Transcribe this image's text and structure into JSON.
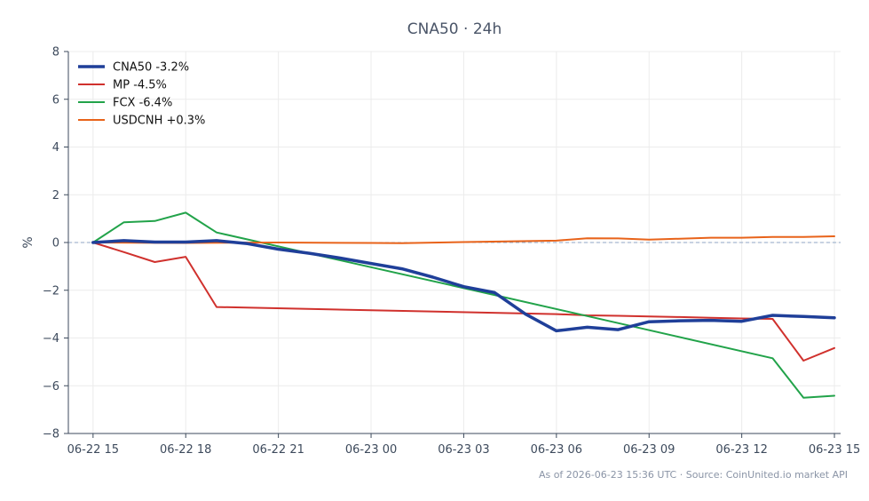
{
  "chart_data": {
    "type": "line",
    "title": "CNA50 · 24h",
    "ylabel": "%",
    "xlabel": "",
    "ylim": [
      -8,
      8
    ],
    "yticks": [
      8,
      6,
      4,
      2,
      0,
      -2,
      -4,
      -6,
      -8
    ],
    "ytick_labels": [
      "8",
      "6",
      "4",
      "2",
      "0",
      "−2",
      "−4",
      "−6",
      "−8"
    ],
    "xlim": [
      -0.8,
      24.2
    ],
    "xticks": [
      0,
      3,
      6,
      9,
      12,
      15,
      18,
      21,
      24
    ],
    "xtick_labels": [
      "06-22 15",
      "06-22 18",
      "06-22 21",
      "06-23 00",
      "06-23 03",
      "06-23 06",
      "06-23 09",
      "06-23 12",
      "06-23 15"
    ],
    "grid": true,
    "zero_line": true,
    "legend_position": "top-left",
    "series": [
      {
        "name": "CNA50 -3.2%",
        "color": "#1f3f99",
        "width": 3.5,
        "x": [
          0,
          1,
          2,
          3,
          4,
          5,
          6,
          7,
          8,
          9,
          10,
          11,
          12,
          13,
          14,
          15,
          16,
          17,
          18,
          19,
          20,
          21,
          22,
          23,
          24
        ],
        "y": [
          0.0,
          0.08,
          0.02,
          0.02,
          0.08,
          -0.05,
          -0.28,
          -0.45,
          -0.65,
          -0.88,
          -1.1,
          -1.45,
          -1.85,
          -2.1,
          -3.0,
          -3.7,
          -3.55,
          -3.65,
          -3.32,
          -3.28,
          -3.26,
          -3.3,
          -3.05,
          -3.1,
          -3.15
        ]
      },
      {
        "name": "MP -4.5%",
        "color": "#d0312d",
        "width": 2,
        "x": [
          0,
          1,
          2,
          3,
          4,
          23,
          24
        ],
        "y": [
          0.0,
          -0.4,
          -0.82,
          -0.6,
          -2.7,
          -4.95,
          -4.42
        ],
        "x_full": [
          0,
          1,
          2,
          3,
          4,
          15,
          16,
          17,
          18,
          19,
          20,
          21,
          22,
          23,
          24
        ],
        "y_full": [
          0.0,
          -0.4,
          -0.82,
          -0.6,
          -2.7,
          -3.0,
          -3.05,
          -3.07,
          -3.1,
          -3.12,
          -3.15,
          -3.18,
          -3.2,
          -4.95,
          -4.42
        ]
      },
      {
        "name": "FCX -6.4%",
        "color": "#22a34a",
        "width": 2,
        "x": [
          0,
          1,
          2,
          3,
          4,
          13,
          22,
          23,
          24
        ],
        "y": [
          0.0,
          0.85,
          0.9,
          1.25,
          0.42,
          -2.2,
          -4.85,
          -6.5,
          -6.42
        ]
      },
      {
        "name": "USDCNH +0.3%",
        "color": "#e8631a",
        "width": 2,
        "x": [
          0,
          3,
          6,
          9,
          10,
          12,
          15,
          16,
          17,
          18,
          19,
          20,
          21,
          22,
          23,
          24
        ],
        "y": [
          0.0,
          -0.02,
          0.0,
          -0.02,
          -0.03,
          0.02,
          0.08,
          0.18,
          0.17,
          0.12,
          0.16,
          0.2,
          0.2,
          0.23,
          0.23,
          0.26
        ]
      }
    ]
  },
  "footer": "As of 2026-06-23 15:36 UTC · Source: CoinUnited.io market API"
}
